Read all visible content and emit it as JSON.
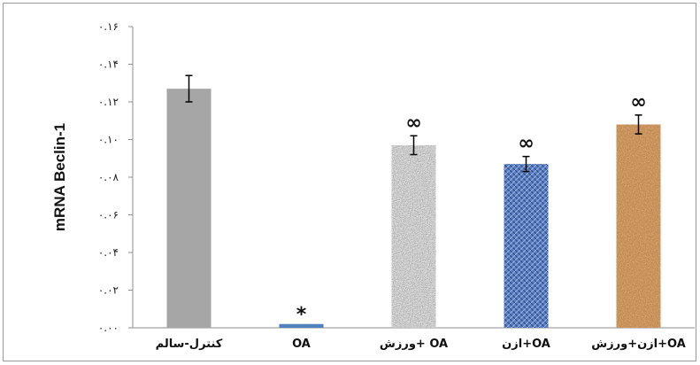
{
  "chart_data": {
    "type": "bar",
    "ylabel": "mRNA Beclin-1",
    "ylim": [
      0,
      0.16
    ],
    "yticks": [
      0,
      0.02,
      0.04,
      0.06,
      0.08,
      0.1,
      0.12,
      0.14,
      0.16
    ],
    "ytick_labels": [
      "۰.۰۰",
      "۰.۰۲",
      "۰.۰۴",
      "۰.۰۶",
      "۰.۰۸",
      "۰.۱۰",
      "۰.۱۲",
      "۰.۱۴",
      "۰.۱۶"
    ],
    "categories": [
      "کنترل-سالم",
      "OA",
      "ورزش+ OA",
      "ازن+OA",
      "ازن+ورزش+OA"
    ],
    "values": [
      0.127,
      0.002,
      0.097,
      0.087,
      0.108
    ],
    "errors": [
      0.007,
      0,
      0.005,
      0.004,
      0.005
    ],
    "annotations": [
      "",
      "*",
      "∞",
      "∞",
      "∞"
    ],
    "bar_fills": [
      "#a6a6a6",
      "#4f81bd",
      "url(#texGray)",
      "url(#texBlue)",
      "url(#texBrown)"
    ]
  }
}
